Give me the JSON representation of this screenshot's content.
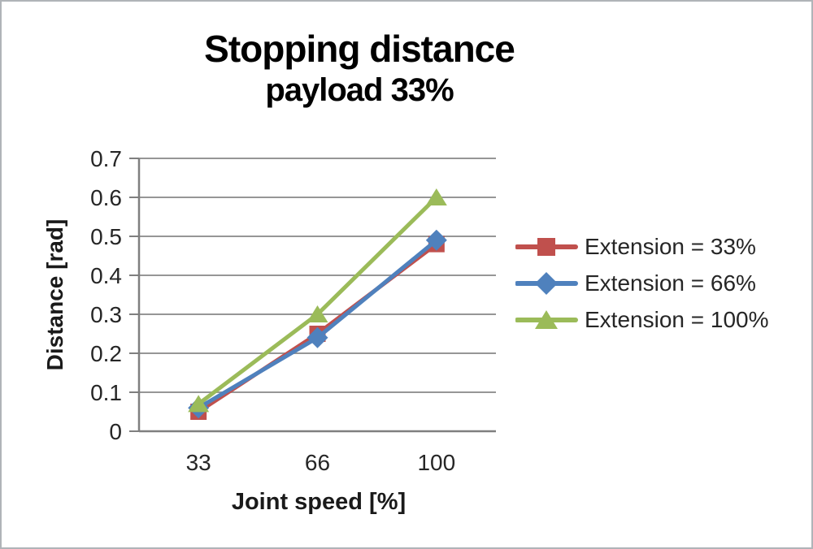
{
  "window": {
    "background": "#ffffff",
    "border_color": "#b0b4b8"
  },
  "chart_data": {
    "type": "line",
    "title": "Stopping distance",
    "subtitle": "payload 33%",
    "xlabel": "Joint speed [%]",
    "ylabel": "Distance [rad]",
    "categories": [
      "33",
      "66",
      "100"
    ],
    "series": [
      {
        "name": "Extension = 33%",
        "color": "#C0504D",
        "marker": "square",
        "values": [
          0.05,
          0.25,
          0.48
        ]
      },
      {
        "name": "Extension = 66%",
        "color": "#4F81BD",
        "marker": "diamond",
        "values": [
          0.06,
          0.24,
          0.49
        ]
      },
      {
        "name": "Extension = 100%",
        "color": "#9BBB59",
        "marker": "triangle",
        "values": [
          0.07,
          0.3,
          0.6
        ]
      }
    ],
    "ylim": [
      0,
      0.7
    ],
    "ytick_step": 0.1,
    "ytick_labels": [
      "0",
      "0.1",
      "0.2",
      "0.3",
      "0.4",
      "0.5",
      "0.6",
      "0.7"
    ],
    "grid": true,
    "legend_position": "right",
    "gridline_color": "#969696",
    "axis_color": "#7f7f7f",
    "tick_label_color": "#262626"
  }
}
